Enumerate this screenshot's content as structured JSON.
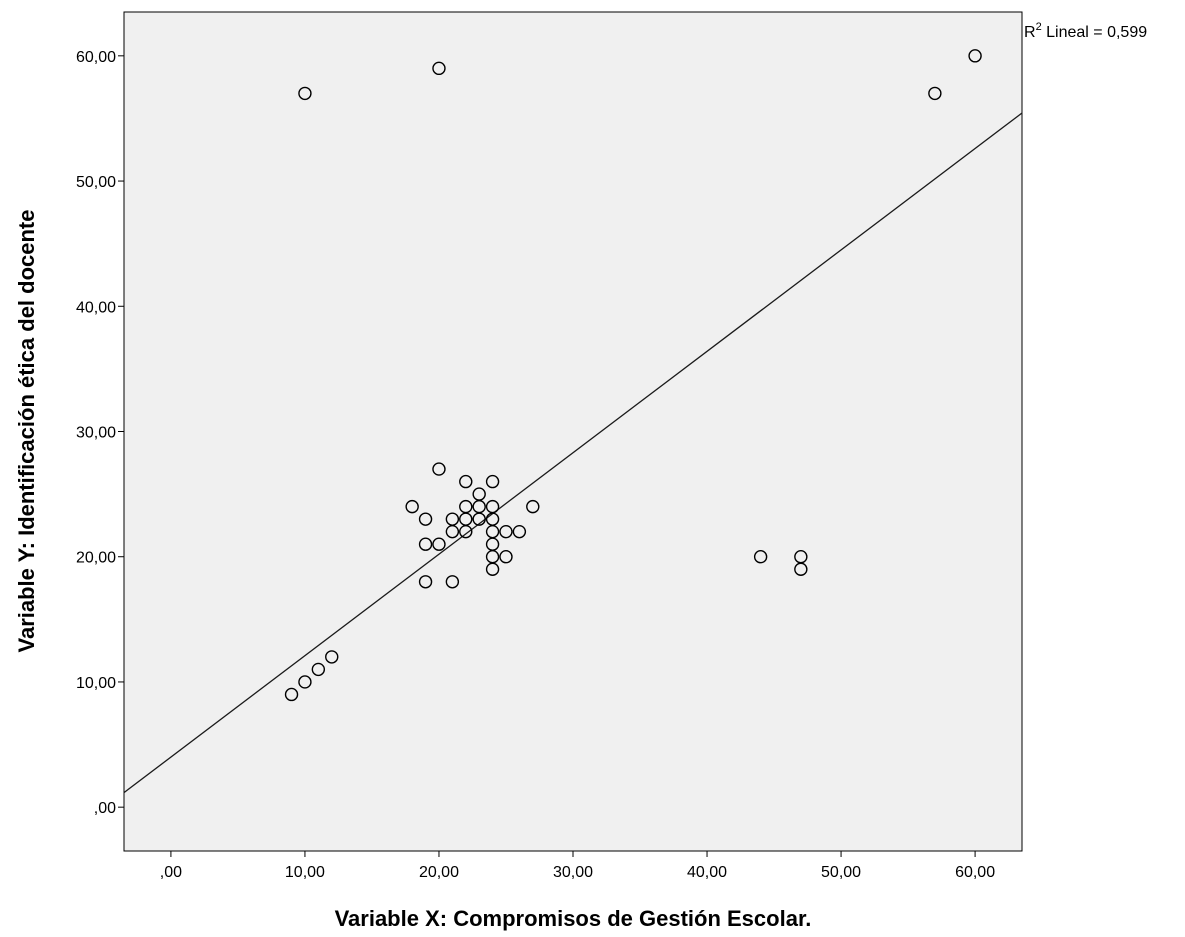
{
  "chart_data": {
    "type": "scatter",
    "title": "",
    "xlabel": "Variable X: Compromisos de Gestión Escolar.",
    "ylabel": "Variable Y: Identificación ética del docente",
    "xlim": [
      -3.5,
      63.5
    ],
    "ylim": [
      -3.5,
      63.5
    ],
    "x_ticks": [
      0,
      10,
      20,
      30,
      40,
      50,
      60
    ],
    "x_tick_labels": [
      ",00",
      "10,00",
      "20,00",
      "30,00",
      "40,00",
      "50,00",
      "60,00"
    ],
    "y_ticks": [
      0,
      10,
      20,
      30,
      40,
      50,
      60
    ],
    "y_tick_labels": [
      ",00",
      "10,00",
      "20,00",
      "30,00",
      "40,00",
      "50,00",
      "60,00"
    ],
    "fit_line": {
      "label_prefix": "R",
      "label_sup": "2",
      "label_suffix": " Lineal = 0,599",
      "intercept": 4.0,
      "slope": 0.81
    },
    "points": [
      [
        9,
        9
      ],
      [
        10,
        10
      ],
      [
        11,
        11
      ],
      [
        12,
        12
      ],
      [
        10,
        57
      ],
      [
        20,
        59
      ],
      [
        18,
        24
      ],
      [
        19,
        23
      ],
      [
        19,
        21
      ],
      [
        19,
        18
      ],
      [
        20,
        27
      ],
      [
        20,
        21
      ],
      [
        21,
        23
      ],
      [
        21,
        22
      ],
      [
        21,
        18
      ],
      [
        22,
        26
      ],
      [
        22,
        24
      ],
      [
        22,
        23
      ],
      [
        22,
        22
      ],
      [
        23,
        25
      ],
      [
        23,
        24
      ],
      [
        23,
        23
      ],
      [
        24,
        26
      ],
      [
        24,
        24
      ],
      [
        24,
        23
      ],
      [
        24,
        22
      ],
      [
        24,
        21
      ],
      [
        24,
        20
      ],
      [
        24,
        19
      ],
      [
        25,
        22
      ],
      [
        25,
        20
      ],
      [
        26,
        22
      ],
      [
        27,
        24
      ],
      [
        44,
        20
      ],
      [
        47,
        20
      ],
      [
        47,
        19
      ],
      [
        57,
        57
      ],
      [
        60,
        60
      ]
    ]
  },
  "colors": {
    "plot_background": "#f0f0f0",
    "axis": "#000000",
    "marker_stroke": "#000000",
    "fit_line": "#1a1a1a"
  }
}
